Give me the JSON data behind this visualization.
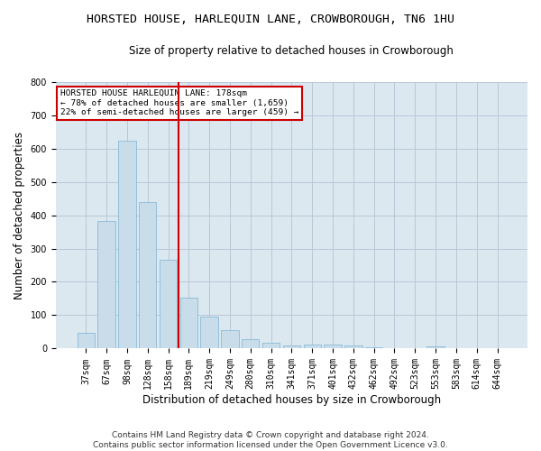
{
  "title": "HORSTED HOUSE, HARLEQUIN LANE, CROWBOROUGH, TN6 1HU",
  "subtitle": "Size of property relative to detached houses in Crowborough",
  "xlabel": "Distribution of detached houses by size in Crowborough",
  "ylabel": "Number of detached properties",
  "categories": [
    "37sqm",
    "67sqm",
    "98sqm",
    "128sqm",
    "158sqm",
    "189sqm",
    "219sqm",
    "249sqm",
    "280sqm",
    "310sqm",
    "341sqm",
    "371sqm",
    "401sqm",
    "432sqm",
    "462sqm",
    "492sqm",
    "523sqm",
    "553sqm",
    "583sqm",
    "614sqm",
    "644sqm"
  ],
  "values": [
    47,
    383,
    622,
    440,
    265,
    152,
    96,
    55,
    28,
    17,
    10,
    12,
    12,
    10,
    5,
    0,
    0,
    7,
    0,
    0,
    0
  ],
  "bar_color": "#c9dcea",
  "bar_edge_color": "#7ab4d4",
  "vline_x": 4.5,
  "vline_color": "#cc0000",
  "annotation_text": "HORSTED HOUSE HARLEQUIN LANE: 178sqm\n← 78% of detached houses are smaller (1,659)\n22% of semi-detached houses are larger (459) →",
  "annotation_box_color": "#ffffff",
  "annotation_box_edge": "#cc0000",
  "grid_color": "#b8c8d8",
  "bg_color": "#dce8f0",
  "ylim": [
    0,
    800
  ],
  "yticks": [
    0,
    100,
    200,
    300,
    400,
    500,
    600,
    700,
    800
  ],
  "footer": "Contains HM Land Registry data © Crown copyright and database right 2024.\nContains public sector information licensed under the Open Government Licence v3.0.",
  "title_fontsize": 9.5,
  "subtitle_fontsize": 8.5,
  "tick_fontsize": 7,
  "label_fontsize": 8.5,
  "footer_fontsize": 6.5
}
